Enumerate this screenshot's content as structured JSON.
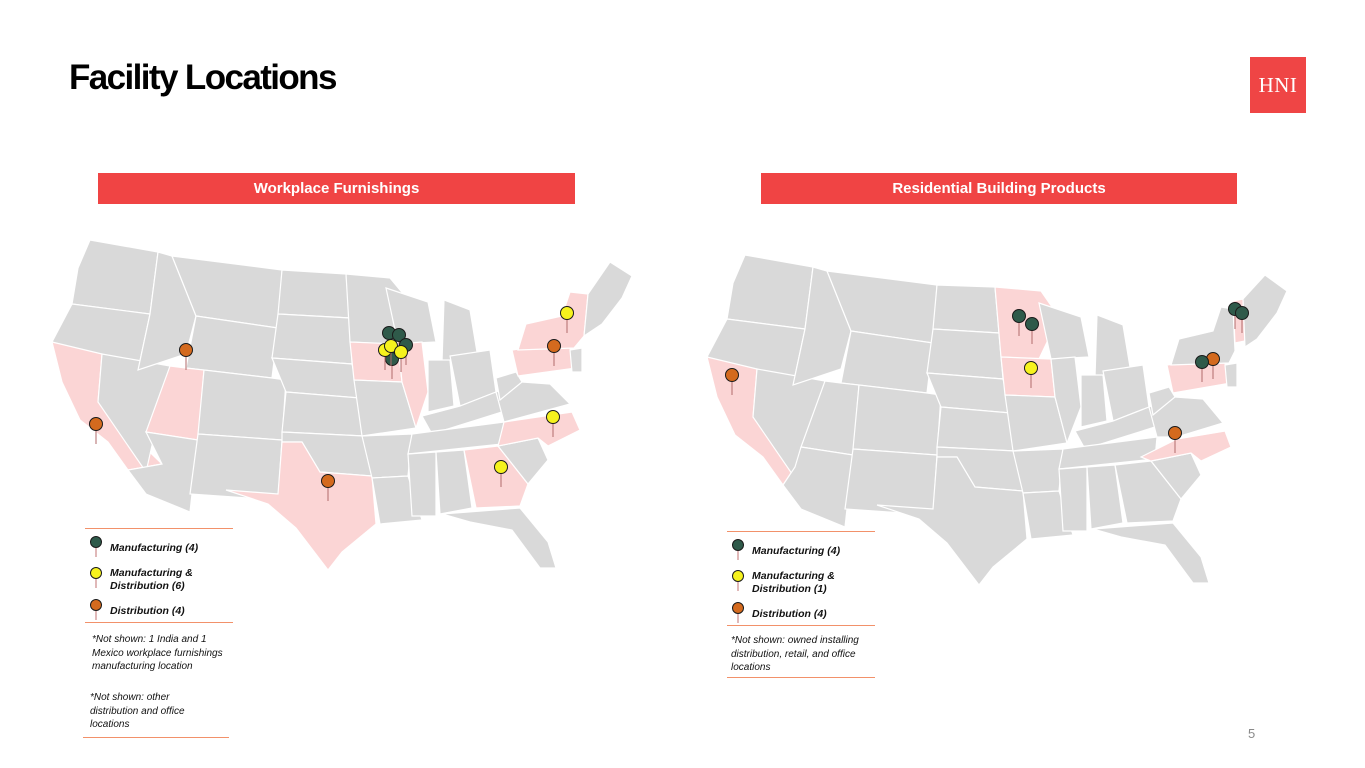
{
  "title": "Facility Locations",
  "logo_text": "HNI",
  "page_number": "5",
  "colors": {
    "accent": "#f04444",
    "state_base": "#d9d9d9",
    "state_highlight": "#fbd5d5",
    "manufacturing": "#2f5a4a",
    "manufacturing_distribution": "#f6f21e",
    "distribution": "#d46a1e"
  },
  "sections": {
    "workplace": {
      "heading": "Workplace Furnishings",
      "highlighted_states": [
        "California",
        "Utah",
        "Texas",
        "Iowa",
        "Illinois",
        "Georgia",
        "North Carolina",
        "Pennsylvania",
        "New York"
      ],
      "legend": [
        {
          "type": "manufacturing",
          "label": "Manufacturing (4)"
        },
        {
          "type": "manufacturing_distribution",
          "label": "Manufacturing & Distribution (6)"
        },
        {
          "type": "distribution",
          "label": "Distribution (4)"
        }
      ],
      "note1": "*Not shown: 1 India and 1 Mexico workplace furnishings manufacturing location",
      "note2": "*Not shown: other distribution and office locations"
    },
    "residential": {
      "heading": "Residential Building Products",
      "highlighted_states": [
        "California",
        "Minnesota",
        "Iowa",
        "Pennsylvania",
        "North Carolina",
        "Vermont"
      ],
      "legend": [
        {
          "type": "manufacturing",
          "label": "Manufacturing (4)"
        },
        {
          "type": "manufacturing_distribution",
          "label": "Manufacturing & Distribution (1)"
        },
        {
          "type": "distribution",
          "label": "Distribution (4)"
        }
      ],
      "note1": "*Not shown: owned installing distribution, retail, and office locations"
    }
  }
}
